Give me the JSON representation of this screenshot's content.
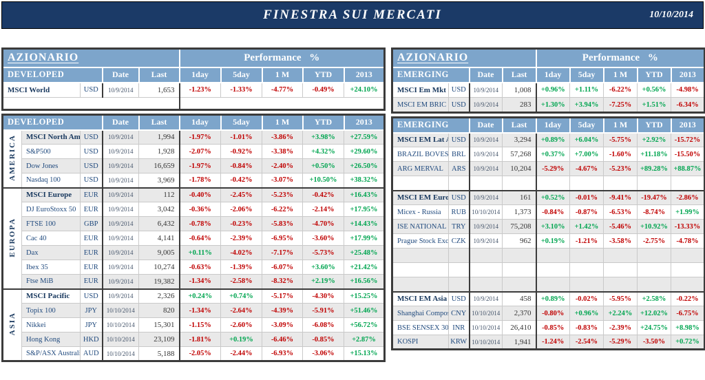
{
  "banner": {
    "title": "FINESTRA SUI MERCATI",
    "date": "10/10/2014"
  },
  "labels": {
    "azionario": "AZIONARIO",
    "performance": "Performance %",
    "cols": [
      "Date",
      "Last",
      "1day",
      "5day",
      "1 M",
      "YTD",
      "2013"
    ]
  },
  "colors": {
    "banner_navy": "#1B3A67",
    "header_blue": "#7DA5CB",
    "negative_red": "#C00000",
    "positive_green": "#00A550",
    "row_gray": "#E9E9E9",
    "name_navy": "#1F497D"
  },
  "left": {
    "t1": {
      "section": "DEVELOPED",
      "rows": [
        {
          "name": "MSCI World",
          "bold": true,
          "curr": "USD",
          "date": "10/9/2014",
          "last": "1,653",
          "p": [
            "-1.23%",
            "-1.33%",
            "-4.77%",
            "-0.49%",
            "+24.10%"
          ],
          "bg": "w",
          "gs": true
        },
        {
          "empty": "split",
          "bg": "w"
        }
      ]
    },
    "t2": {
      "section": "DEVELOPED",
      "rows": [
        {
          "vlabel": "AMERICA",
          "vspan": 4,
          "name": "MSCI North Am",
          "bold": true,
          "curr": "USD",
          "date": "10/9/2014",
          "last": "1,994",
          "p": [
            "-1.97%",
            "-1.01%",
            "-3.86%",
            "+3.98%",
            "+27.59%"
          ],
          "bg": "g",
          "gs": true
        },
        {
          "name": "S&P500",
          "curr": "USD",
          "date": "10/9/2014",
          "last": "1,928",
          "p": [
            "-2.07%",
            "-0.92%",
            "-3.38%",
            "+4.32%",
            "+29.60%"
          ],
          "bg": "w"
        },
        {
          "name": "Dow Jones",
          "curr": "USD",
          "date": "10/9/2014",
          "last": "16,659",
          "p": [
            "-1.97%",
            "-0.84%",
            "-2.40%",
            "+0.50%",
            "+26.50%"
          ],
          "bg": "g"
        },
        {
          "name": "Nasdaq 100",
          "curr": "USD",
          "date": "10/9/2014",
          "last": "3,969",
          "p": [
            "-1.78%",
            "-0.42%",
            "-3.07%",
            "+10.50%",
            "+38.32%"
          ],
          "bg": "w"
        },
        {
          "vlabel": "EUROPA",
          "vspan": 7,
          "name": "MSCI Europe",
          "bold": true,
          "curr": "EUR",
          "date": "10/9/2014",
          "last": "112",
          "p": [
            "-0.40%",
            "-2.45%",
            "-5.23%",
            "-0.42%",
            "+16.43%"
          ],
          "bg": "g",
          "gs": true
        },
        {
          "name": "DJ EuroStoxx 50",
          "curr": "EUR",
          "date": "10/9/2014",
          "last": "3,042",
          "p": [
            "-0.36%",
            "-2.06%",
            "-6.22%",
            "-2.14%",
            "+17.95%"
          ],
          "bg": "w"
        },
        {
          "name": "FTSE 100",
          "curr": "GBP",
          "date": "10/9/2014",
          "last": "6,432",
          "p": [
            "-0.78%",
            "-0.23%",
            "-5.83%",
            "-4.70%",
            "+14.43%"
          ],
          "bg": "g"
        },
        {
          "name": "Cac 40",
          "curr": "EUR",
          "date": "10/9/2014",
          "last": "4,141",
          "p": [
            "-0.64%",
            "-2.39%",
            "-6.95%",
            "-3.60%",
            "+17.99%"
          ],
          "bg": "w"
        },
        {
          "name": "Dax",
          "curr": "EUR",
          "date": "10/9/2014",
          "last": "9,005",
          "p": [
            "+0.11%",
            "-4.02%",
            "-7.17%",
            "-5.73%",
            "+25.48%"
          ],
          "bg": "g"
        },
        {
          "name": "Ibex 35",
          "curr": "EUR",
          "date": "10/9/2014",
          "last": "10,274",
          "p": [
            "-0.63%",
            "-1.39%",
            "-6.07%",
            "+3.60%",
            "+21.42%"
          ],
          "bg": "w"
        },
        {
          "name": "Ftse MiB",
          "curr": "EUR",
          "date": "10/9/2014",
          "last": "19,382",
          "p": [
            "-1.34%",
            "-2.58%",
            "-8.32%",
            "+2.19%",
            "+16.56%"
          ],
          "bg": "g"
        },
        {
          "vlabel": "ASIA",
          "vspan": 5,
          "name": "MSCI Pacific",
          "bold": true,
          "curr": "USD",
          "date": "10/9/2014",
          "last": "2,326",
          "p": [
            "+0.24%",
            "+0.74%",
            "-5.17%",
            "-4.30%",
            "+15.25%"
          ],
          "bg": "w",
          "gs": true
        },
        {
          "name": "Topix 100",
          "curr": "JPY",
          "date": "10/10/2014",
          "last": "820",
          "p": [
            "-1.34%",
            "-2.64%",
            "-4.39%",
            "-5.91%",
            "+51.46%"
          ],
          "bg": "g"
        },
        {
          "name": "Nikkei",
          "curr": "JPY",
          "date": "10/10/2014",
          "last": "15,301",
          "p": [
            "-1.15%",
            "-2.60%",
            "-3.09%",
            "-6.08%",
            "+56.72%"
          ],
          "bg": "w"
        },
        {
          "name": "Hong Kong",
          "curr": "HKD",
          "date": "10/10/2014",
          "last": "23,109",
          "p": [
            "-1.81%",
            "+0.19%",
            "-6.46%",
            "-0.85%",
            "+2.87%"
          ],
          "bg": "g"
        },
        {
          "name": "S&P/ASX Australia",
          "curr": "AUD",
          "date": "10/10/2014",
          "last": "5,188",
          "p": [
            "-2.05%",
            "-2.44%",
            "-6.93%",
            "-3.06%",
            "+15.13%"
          ],
          "bg": "w"
        }
      ]
    }
  },
  "right": {
    "t1": {
      "section": "EMERGING",
      "rows": [
        {
          "name": "MSCI Em Mkt",
          "bold": true,
          "curr": "USD",
          "date": "10/9/2014",
          "last": "1,008",
          "p": [
            "+0.96%",
            "+1.11%",
            "-6.22%",
            "+0.56%",
            "-4.98%"
          ],
          "bg": "w",
          "gs": true
        },
        {
          "name": "MSCI EM BRIC",
          "curr": "USD",
          "date": "10/9/2014",
          "last": "283",
          "p": [
            "+1.30%",
            "+3.94%",
            "-7.25%",
            "+1.51%",
            "-6.34%"
          ],
          "bg": "g"
        }
      ]
    },
    "t2": {
      "section": "EMERGING",
      "rows": [
        {
          "name": "MSCI EM Lat Am",
          "bold": true,
          "curr": "USD",
          "date": "10/9/2014",
          "last": "3,294",
          "p": [
            "+0.89%",
            "+6.04%",
            "-5.75%",
            "+2.92%",
            "-15.72%"
          ],
          "bg": "g",
          "gs": true
        },
        {
          "name": "BRAZIL BOVESP.",
          "curr": "BRL",
          "date": "10/9/2014",
          "last": "57,268",
          "p": [
            "+0.37%",
            "+7.00%",
            "-1.60%",
            "+11.18%",
            "-15.50%"
          ],
          "bg": "w"
        },
        {
          "name": "ARG MERVAL",
          "curr": "ARS",
          "date": "10/9/2014",
          "last": "10,204",
          "p": [
            "-5.29%",
            "-4.67%",
            "-5.23%",
            "+89.28%",
            "+88.87%"
          ],
          "bg": "g"
        },
        {
          "empty": true,
          "bg": "w"
        },
        {
          "name": "MSCI EM Europe",
          "bold": true,
          "curr": "USD",
          "date": "10/9/2014",
          "last": "161",
          "p": [
            "+0.52%",
            "-0.01%",
            "-9.41%",
            "-19.47%",
            "-2.86%"
          ],
          "bg": "g",
          "gs": true
        },
        {
          "name": "Micex - Russia",
          "curr": "RUB",
          "date": "10/10/2014",
          "last": "1,373",
          "p": [
            "-0.84%",
            "-0.87%",
            "-6.53%",
            "-8.74%",
            "+1.99%"
          ],
          "bg": "w"
        },
        {
          "name": "ISE NATIONAL 1",
          "curr": "TRY",
          "date": "10/9/2014",
          "last": "75,208",
          "p": [
            "+3.10%",
            "+1.42%",
            "-5.46%",
            "+10.92%",
            "-13.33%"
          ],
          "bg": "g"
        },
        {
          "name": "Prague Stock Exch.",
          "curr": "CZK",
          "date": "10/9/2014",
          "last": "962",
          "p": [
            "+0.19%",
            "-1.21%",
            "-3.58%",
            "-2.75%",
            "-4.78%"
          ],
          "bg": "w"
        },
        {
          "empty": true,
          "bg": "g"
        },
        {
          "empty": true,
          "bg": "w"
        },
        {
          "empty": true,
          "bg": "g"
        },
        {
          "name": "MSCI EM Asia",
          "bold": true,
          "curr": "USD",
          "date": "10/9/2014",
          "last": "458",
          "p": [
            "+0.89%",
            "-0.02%",
            "-5.95%",
            "+2.58%",
            "-0.22%"
          ],
          "bg": "w",
          "gs": true
        },
        {
          "name": "Shanghai Composite",
          "curr": "CNY",
          "date": "10/10/2014",
          "last": "2,370",
          "p": [
            "-0.80%",
            "+0.96%",
            "+2.24%",
            "+12.02%",
            "-6.75%"
          ],
          "bg": "g"
        },
        {
          "name": "BSE SENSEX 30",
          "curr": "INR",
          "date": "10/10/2014",
          "last": "26,410",
          "p": [
            "-0.85%",
            "-0.83%",
            "-2.39%",
            "+24.75%",
            "+8.98%"
          ],
          "bg": "w"
        },
        {
          "name": "KOSPI",
          "curr": "KRW",
          "date": "10/10/2014",
          "last": "1,941",
          "p": [
            "-1.24%",
            "-2.54%",
            "-5.29%",
            "-3.50%",
            "+0.72%"
          ],
          "bg": "g"
        }
      ]
    }
  }
}
